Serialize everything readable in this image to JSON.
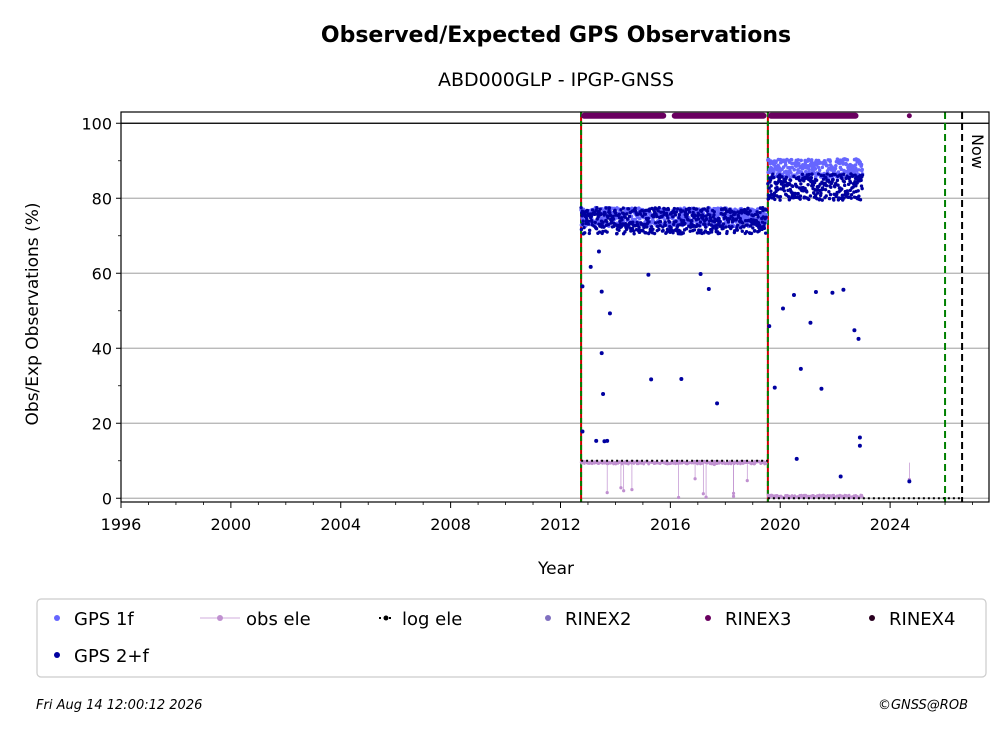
{
  "chart_data": {
    "type": "scatter",
    "title": "Observed/Expected GPS Observations",
    "subtitle": "ABD000GLP - IPGP-GNSS",
    "xlabel": "Year",
    "ylabel": "Obs/Exp Observations (%)",
    "xlim": [
      1996,
      2027.6
    ],
    "ylim": [
      -1,
      103
    ],
    "xticks": [
      "1996",
      "2000",
      "2004",
      "2008",
      "2012",
      "2016",
      "2020",
      "2024"
    ],
    "yticks": [
      "0",
      "20",
      "40",
      "60",
      "80",
      "100"
    ],
    "grid": "horizontal",
    "legend": {
      "placement": "below",
      "entries": [
        {
          "label": "GPS 1f",
          "color": "#6666ff"
        },
        {
          "label": "obs ele",
          "color": "#c090d0"
        },
        {
          "label": "log ele",
          "color": "#000000"
        },
        {
          "label": "RINEX2",
          "color": "#8070c0"
        },
        {
          "label": "RINEX3",
          "color": "#6a0060"
        },
        {
          "label": "RINEX4",
          "color": "#2a0020"
        },
        {
          "label": "GPS 2+f",
          "color": "#0000a0"
        }
      ]
    },
    "vertical_lines": [
      {
        "x": 2012.75,
        "style": "red-green-dashed"
      },
      {
        "x": 2019.55,
        "style": "red-green-dashed"
      },
      {
        "x": 2026.0,
        "style": "green-dashed"
      },
      {
        "x": 2026.62,
        "style": "black-dashed",
        "label": "Now"
      }
    ],
    "series": [
      {
        "name": "GPS 1f",
        "segments": [
          {
            "x_start": 2012.75,
            "x_end": 2019.5,
            "y_mean": 75
          },
          {
            "x_start": 2019.55,
            "x_end": 2023.0,
            "y_mean": 88
          }
        ]
      },
      {
        "name": "GPS 2+f",
        "segments": [
          {
            "x_start": 2012.75,
            "x_end": 2019.5,
            "y_mean": 74
          },
          {
            "x_start": 2019.55,
            "x_end": 2023.0,
            "y_mean": 83
          }
        ],
        "outliers": [
          [
            2012.8,
            56.5
          ],
          [
            2012.8,
            17.8
          ],
          [
            2013.1,
            61.7
          ],
          [
            2013.3,
            15.3
          ],
          [
            2013.4,
            65.8
          ],
          [
            2013.5,
            55.1
          ],
          [
            2013.5,
            38.7
          ],
          [
            2013.55,
            27.8
          ],
          [
            2013.6,
            15.2
          ],
          [
            2013.7,
            15.3
          ],
          [
            2013.8,
            49.3
          ],
          [
            2015.2,
            59.6
          ],
          [
            2015.3,
            31.7
          ],
          [
            2016.4,
            31.8
          ],
          [
            2017.1,
            59.8
          ],
          [
            2017.4,
            55.8
          ],
          [
            2017.7,
            25.3
          ],
          [
            2019.6,
            45.9
          ],
          [
            2019.8,
            29.5
          ],
          [
            2020.1,
            50.6
          ],
          [
            2020.5,
            54.2
          ],
          [
            2020.6,
            10.5
          ],
          [
            2020.75,
            34.5
          ],
          [
            2021.1,
            46.8
          ],
          [
            2021.3,
            55.0
          ],
          [
            2021.5,
            29.2
          ],
          [
            2021.9,
            54.8
          ],
          [
            2022.3,
            55.6
          ],
          [
            2022.2,
            5.8
          ],
          [
            2022.7,
            44.8
          ],
          [
            2022.85,
            42.5
          ],
          [
            2022.9,
            16.2
          ],
          [
            2022.9,
            14.0
          ],
          [
            2024.7,
            4.5
          ]
        ]
      },
      {
        "name": "obs ele",
        "segments": [
          {
            "x_start": 2012.75,
            "x_end": 2019.5,
            "y": 9.5
          },
          {
            "x_start": 2019.55,
            "x_end": 2023.0,
            "y": 0.5
          }
        ],
        "points": [
          [
            2013.7,
            1.5
          ],
          [
            2014.2,
            2.8
          ],
          [
            2014.3,
            2.0
          ],
          [
            2014.6,
            2.3
          ],
          [
            2016.3,
            0.2
          ],
          [
            2016.9,
            5.2
          ],
          [
            2017.2,
            1.2
          ],
          [
            2017.3,
            0.3
          ],
          [
            2017.6,
            9.0
          ],
          [
            2018.3,
            1.3
          ],
          [
            2018.3,
            0.5
          ],
          [
            2018.8,
            4.7
          ],
          [
            2024.7,
            5.0
          ]
        ]
      },
      {
        "name": "log ele",
        "segments": [
          {
            "x_start": 2012.75,
            "x_end": 2019.55,
            "y": 10
          },
          {
            "x_start": 2019.55,
            "x_end": 2026.6,
            "y": 0
          }
        ]
      },
      {
        "name": "RINEX3",
        "segments": [
          {
            "x_start": 2012.75,
            "x_end": 2015.85,
            "y": 102
          },
          {
            "x_start": 2016.05,
            "x_end": 2019.5,
            "y": 102
          },
          {
            "x_start": 2019.55,
            "x_end": 2022.85,
            "y": 102
          }
        ],
        "points": [
          [
            2024.7,
            102
          ]
        ]
      }
    ]
  },
  "footer": {
    "timestamp": "Fri Aug 14 12:00:12 2026",
    "credit": "©GNSS@ROB"
  }
}
